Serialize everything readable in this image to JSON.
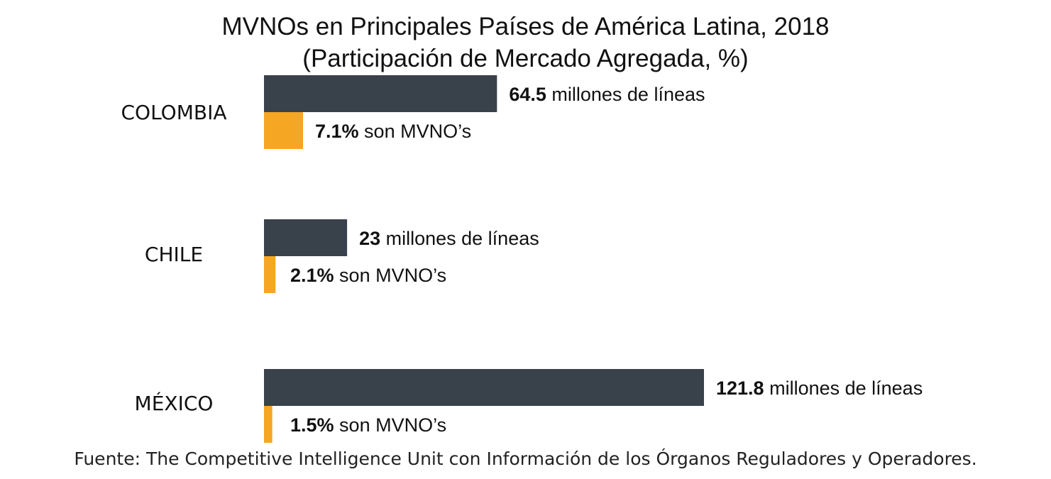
{
  "title_line1": "MVNOs en Principales Países de América Latina, 2018",
  "title_line2": "(Participación de Mercado Agregada, %)",
  "footer": "Fuente: The Competitive Intelligence Unit con Información de los Órganos Reguladores y Operadores.",
  "colors": {
    "total_bar": "#39414a",
    "mvno_bar": "#f5a623",
    "text": "#111111"
  },
  "chart_data": {
    "type": "bar",
    "orientation": "horizontal",
    "title": "MVNOs en Principales Países de América Latina, 2018",
    "subtitle": "(Participación de Mercado Agregada, %)",
    "categories": [
      "COLOMBIA",
      "CHILE",
      "MÉXICO"
    ],
    "series": [
      {
        "key": "total",
        "values": [
          64.5,
          23,
          121.8
        ],
        "value_labels": [
          "64.5",
          "23",
          "121.8"
        ],
        "label_suffix": " millones  de líneas"
      },
      {
        "key": "mvno",
        "values": [
          7.1,
          2.1,
          1.5
        ],
        "value_labels": [
          "7.1%",
          "2.1%",
          "1.5%"
        ],
        "label_suffix": " son MVNO’s"
      }
    ],
    "grid": false,
    "legend": "none"
  }
}
